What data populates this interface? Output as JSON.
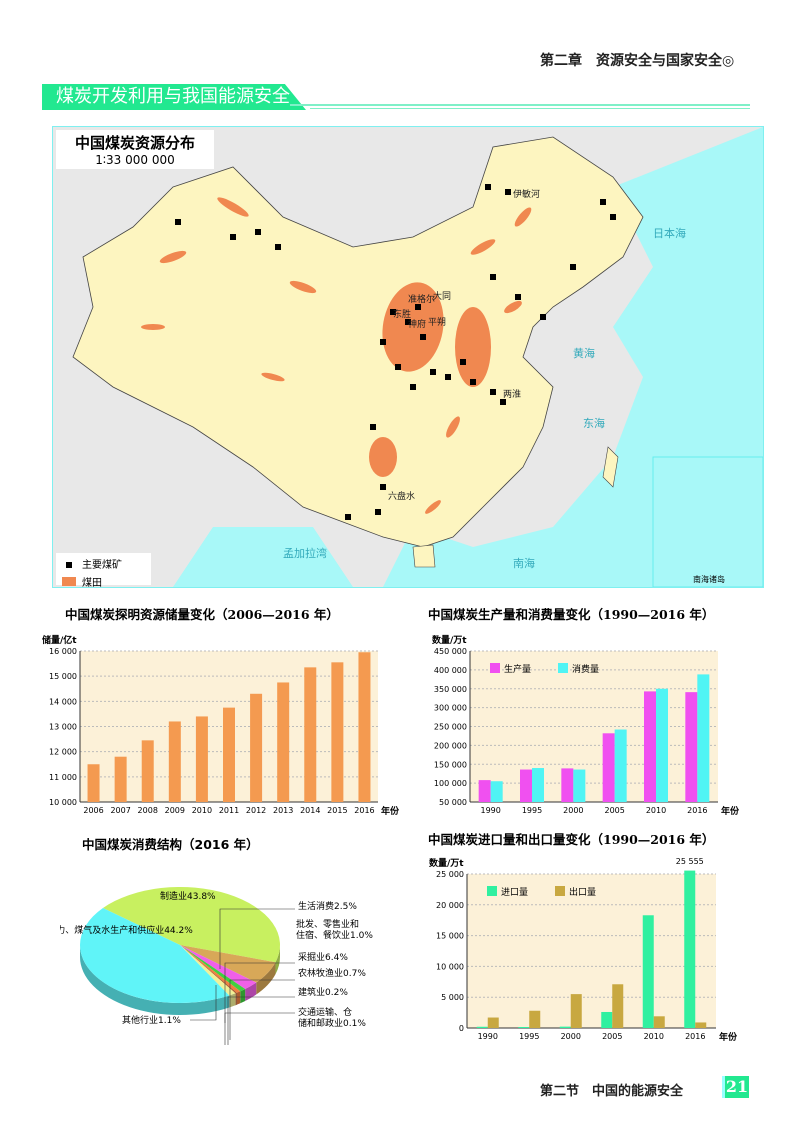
{
  "header": {
    "chapter": "第二章　资源安全与国家安全◎",
    "section_banner": "煤炭开发利用与我国能源安全"
  },
  "map": {
    "title": "中国煤炭资源分布",
    "scale": "1∶33 000 000",
    "legend": [
      {
        "label": "主要煤矿",
        "icon": "black-square"
      },
      {
        "label": "煤田",
        "color": "#f08850"
      }
    ],
    "place_labels": [
      "伊敏河",
      "准格尔",
      "大同",
      "东胜",
      "神府",
      "平朔",
      "两淮",
      "六盘水"
    ],
    "sea_labels": [
      "日本海",
      "黄海",
      "东海",
      "南海",
      "孟加拉湾",
      "南海诸岛"
    ],
    "colors": {
      "land": "#fdf5c0",
      "sea": "#a8f8f8",
      "foreign": "#e8e8e8",
      "coalfield": "#f08850"
    }
  },
  "footer": {
    "section": "第二节　中国的能源安全",
    "page": "21"
  },
  "chart_data": [
    {
      "type": "bar",
      "title": "中国煤炭探明资源储量变化（2006—2016 年）",
      "ylabel": "储量/亿t",
      "xlabel": "年份",
      "categories": [
        "2006",
        "2007",
        "2008",
        "2009",
        "2010",
        "2011",
        "2012",
        "2013",
        "2014",
        "2015",
        "2016"
      ],
      "values": [
        11500,
        11800,
        12450,
        13200,
        13400,
        13750,
        14300,
        14750,
        15350,
        15550,
        15950
      ],
      "ylim": [
        10000,
        16000
      ],
      "yticks": [
        "10 000",
        "11 000",
        "12 000",
        "13 000",
        "14 000",
        "15 000",
        "16 000"
      ],
      "color": "#f49a50",
      "grid": true
    },
    {
      "type": "bar",
      "title": "中国煤炭生产量和消费量变化（1990—2016 年）",
      "ylabel": "数量/万t",
      "xlabel": "年份",
      "categories": [
        "1990",
        "1995",
        "2000",
        "2005",
        "2010",
        "2016"
      ],
      "series": [
        {
          "name": "生产量",
          "color": "#f050f0",
          "values": [
            108000,
            136000,
            139000,
            232000,
            343000,
            341000
          ]
        },
        {
          "name": "消费量",
          "color": "#50f4f4",
          "values": [
            105000,
            140000,
            136000,
            242000,
            350000,
            388000
          ]
        }
      ],
      "ylim": [
        50000,
        450000
      ],
      "yticks": [
        "50 000",
        "100 000",
        "150 000",
        "200 000",
        "250 000",
        "300 000",
        "350 000",
        "400 000",
        "450 000"
      ],
      "legend": "top-left",
      "grid": true
    },
    {
      "type": "pie",
      "title": "中国煤炭消费结构（2016 年）",
      "slices": [
        {
          "label": "制造业43.8%",
          "value": 43.8,
          "color": "#c8f060"
        },
        {
          "label": "采掘业6.4%",
          "value": 6.4,
          "color": "#d8a858"
        },
        {
          "label": "生活消费2.5%",
          "value": 2.5,
          "color": "#f060e8"
        },
        {
          "label": "批发、零售业和住宿、餐饮业1.0%",
          "value": 1.0,
          "color": "#40d040"
        },
        {
          "label": "农林牧渔业0.7%",
          "value": 0.7,
          "color": "#f08040"
        },
        {
          "label": "建筑业0.2%",
          "value": 0.2,
          "color": "#a05030"
        },
        {
          "label": "交通运输、仓储和邮政业0.1%",
          "value": 0.1,
          "color": "#f0c040"
        },
        {
          "label": "其他行业1.1%",
          "value": 1.1,
          "color": "#f0f098"
        },
        {
          "label": "电力、煤气及水生产和供应业44.2%",
          "value": 44.2,
          "color": "#60f4f8"
        }
      ]
    },
    {
      "type": "bar",
      "title": "中国煤炭进口量和出口量变化（1990—2016 年）",
      "ylabel": "数量/万t",
      "xlabel": "年份",
      "categories": [
        "1990",
        "1995",
        "2000",
        "2005",
        "2010",
        "2016"
      ],
      "series": [
        {
          "name": "进口量",
          "color": "#30f0a0",
          "values": [
            200,
            160,
            220,
            2600,
            18300,
            25555
          ]
        },
        {
          "name": "出口量",
          "color": "#c8a840",
          "values": [
            1700,
            2800,
            5500,
            7100,
            1900,
            900
          ]
        }
      ],
      "ylim": [
        0,
        25000
      ],
      "yticks": [
        "0",
        "5 000",
        "10 000",
        "15 000",
        "20 000",
        "25 000"
      ],
      "annotation": "25 555",
      "legend": "top-left",
      "grid": true
    }
  ]
}
